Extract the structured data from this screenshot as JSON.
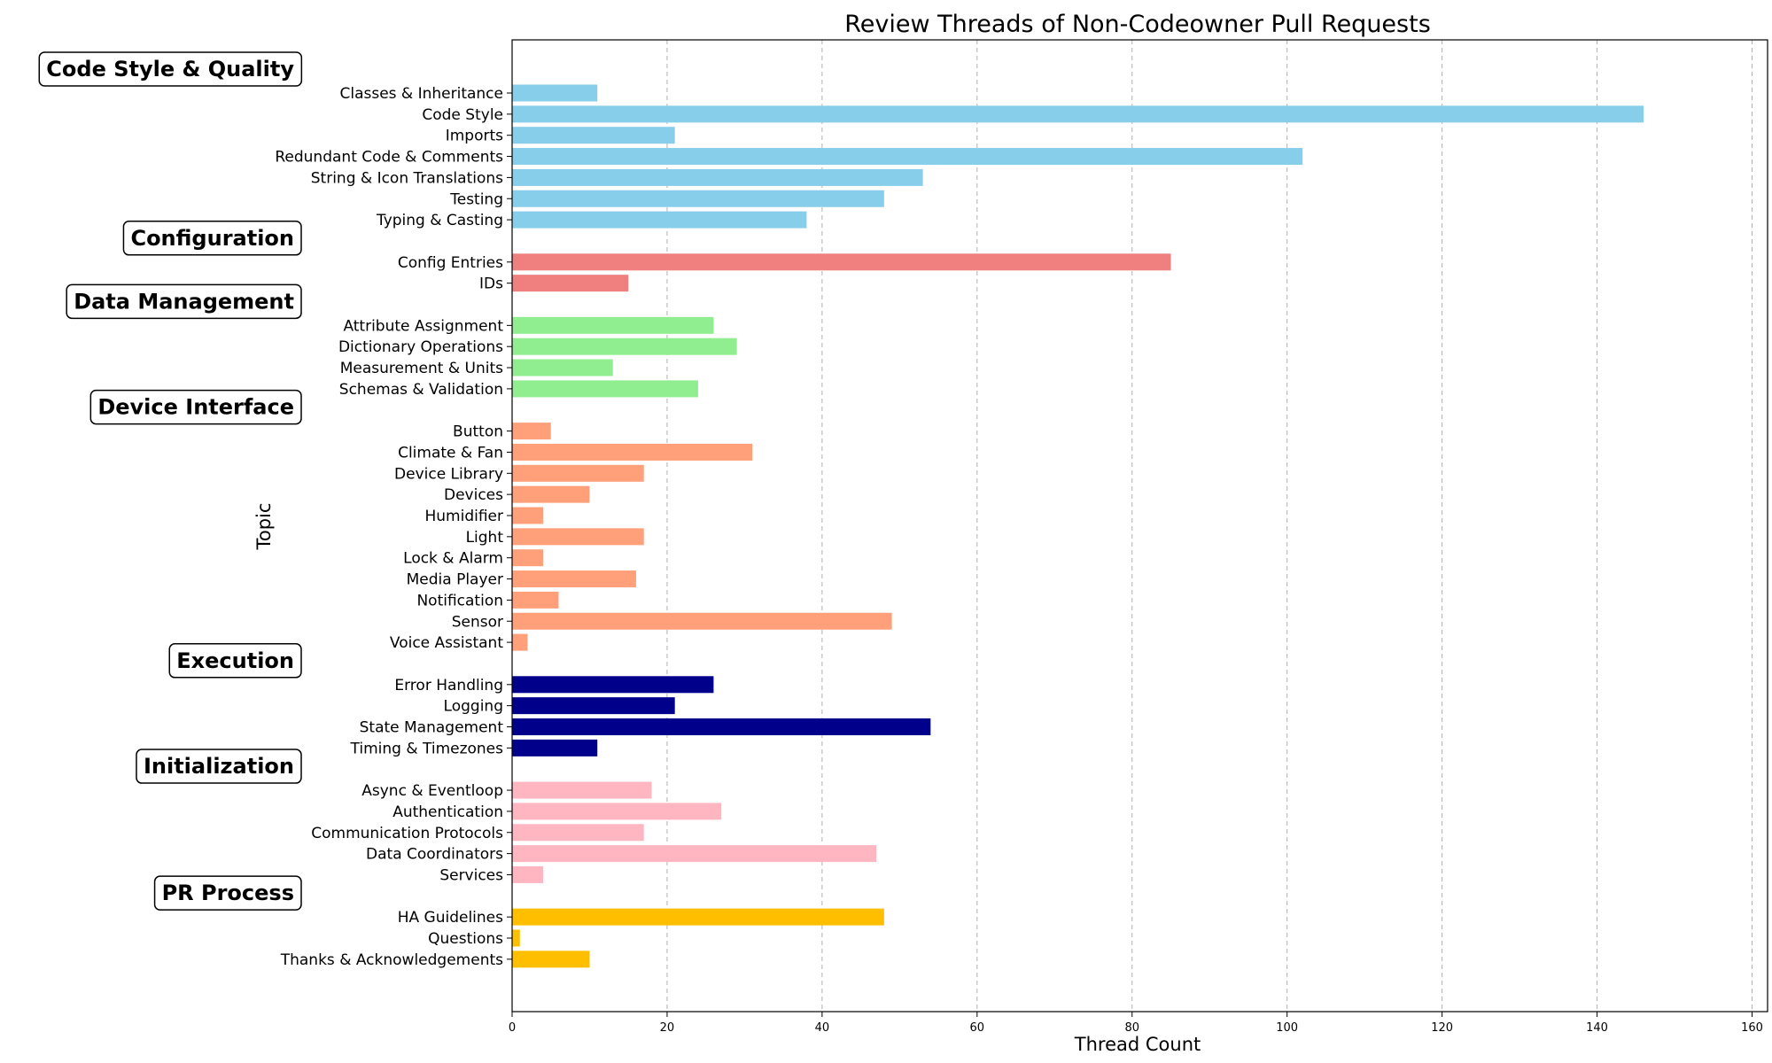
{
  "chart_data": {
    "type": "bar",
    "orientation": "horizontal",
    "title": "Review Threads of Non-Codeowner Pull Requests",
    "xlabel": "Thread Count",
    "ylabel": "Topic",
    "xlim": [
      0,
      162
    ],
    "xticks": [
      0,
      20,
      40,
      60,
      80,
      100,
      120,
      140,
      160
    ],
    "grid": "x-dashed",
    "legend": "none",
    "groups": [
      {
        "name": "Code Style & Quality",
        "color": "#87CEEB",
        "categories": [
          "Classes & Inheritance",
          "Code Style",
          "Imports",
          "Redundant Code & Comments",
          "String & Icon Translations",
          "Testing",
          "Typing & Casting"
        ],
        "values": [
          11,
          146,
          21,
          102,
          53,
          48,
          38
        ]
      },
      {
        "name": "Configuration",
        "color": "#F08080",
        "categories": [
          "Config Entries",
          "IDs"
        ],
        "values": [
          85,
          15
        ]
      },
      {
        "name": "Data Management",
        "color": "#90EE90",
        "categories": [
          "Attribute Assignment",
          "Dictionary Operations",
          "Measurement & Units",
          "Schemas & Validation"
        ],
        "values": [
          26,
          29,
          13,
          24
        ]
      },
      {
        "name": "Device Interface",
        "color": "#FFA07A",
        "categories": [
          "Button",
          "Climate & Fan",
          "Device Library",
          "Devices",
          "Humidifier",
          "Light",
          "Lock & Alarm",
          "Media Player",
          "Notification",
          "Sensor",
          "Voice Assistant"
        ],
        "values": [
          5,
          31,
          17,
          10,
          4,
          17,
          4,
          16,
          6,
          49,
          2
        ]
      },
      {
        "name": "Execution",
        "color": "#00008B",
        "categories": [
          "Error Handling",
          "Logging",
          "State Management",
          "Timing & Timezones"
        ],
        "values": [
          26,
          21,
          54,
          11
        ]
      },
      {
        "name": "Initialization",
        "color": "#FFB6C1",
        "categories": [
          "Async & Eventloop",
          "Authentication",
          "Communication Protocols",
          "Data Coordinators",
          "Services"
        ],
        "values": [
          18,
          27,
          17,
          47,
          4
        ]
      },
      {
        "name": "PR Process",
        "color": "#FFBF00",
        "categories": [
          "HA Guidelines",
          "Questions",
          "Thanks & Acknowledgements"
        ],
        "values": [
          48,
          1,
          10
        ]
      }
    ]
  }
}
